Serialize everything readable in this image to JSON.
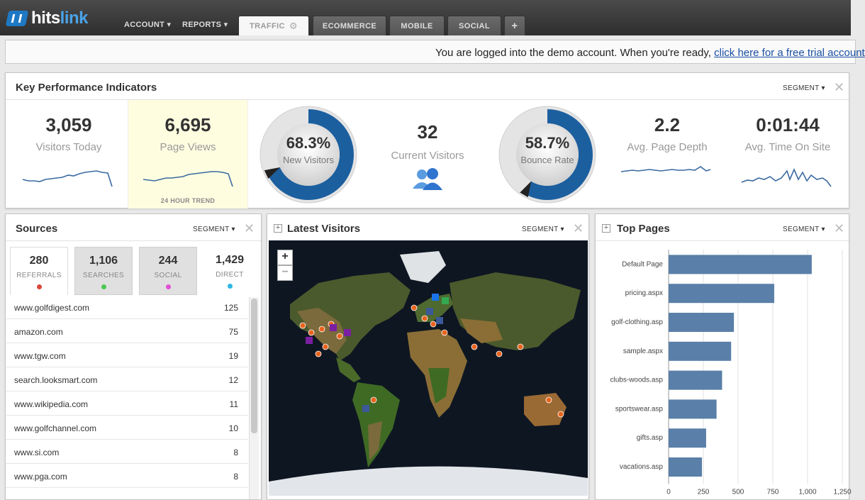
{
  "app": {
    "logo_a": "hits",
    "logo_b": "link"
  },
  "nav": {
    "menus": [
      {
        "label": "ACCOUNT ▾"
      },
      {
        "label": "REPORTS ▾"
      }
    ],
    "tabs": [
      {
        "label": "TRAFFIC"
      },
      {
        "label": "ECOMMERCE"
      },
      {
        "label": "MOBILE"
      },
      {
        "label": "SOCIAL"
      },
      {
        "label": "+"
      }
    ]
  },
  "banner": {
    "text": "You are logged into the demo account.  When you're ready, ",
    "link": "click here for a free trial account"
  },
  "kpi": {
    "title": "Key Performance Indicators",
    "segment_label": "SEGMENT",
    "visitors_today": {
      "value": "3,059",
      "label": "Visitors Today"
    },
    "page_views": {
      "value": "6,695",
      "label": "Page Views"
    },
    "trend_label": "24 HOUR TREND",
    "new_visitors": {
      "value": "68.3%",
      "label": "New Visitors",
      "fraction": 0.683
    },
    "current_visitors": {
      "value": "32",
      "label": "Current Visitors"
    },
    "bounce_rate": {
      "value": "58.7%",
      "label": "Bounce Rate",
      "fraction": 0.587
    },
    "avg_page_depth": {
      "value": "2.2",
      "label": "Avg. Page Depth"
    },
    "avg_time": {
      "value": "0:01:44",
      "label": "Avg. Time On Site"
    },
    "colors": {
      "gauge": "#1c5f9f",
      "spark": "#3a6aa0",
      "highlight": "#fffde0"
    }
  },
  "sources": {
    "title": "Sources",
    "segment_label": "SEGMENT",
    "tabs": [
      {
        "count": "280",
        "label": "REFERRALS",
        "color": "#d9473a"
      },
      {
        "count": "1,106",
        "label": "SEARCHES",
        "color": "#4cc850"
      },
      {
        "count": "244",
        "label": "SOCIAL",
        "color": "#e24fd6"
      },
      {
        "count": "1,429",
        "label": "DIRECT",
        "color": "#2db6e6"
      }
    ],
    "rows": [
      {
        "name": "www.golfdigest.com",
        "count": "125"
      },
      {
        "name": "amazon.com",
        "count": "75"
      },
      {
        "name": "www.tgw.com",
        "count": "19"
      },
      {
        "name": "search.looksmart.com",
        "count": "12"
      },
      {
        "name": "www.wikipedia.com",
        "count": "11"
      },
      {
        "name": "www.golfchannel.com",
        "count": "10"
      },
      {
        "name": "www.si.com",
        "count": "8"
      },
      {
        "name": "www.pga.com",
        "count": "8"
      }
    ]
  },
  "latest": {
    "title": "Latest Visitors",
    "segment_label": "SEGMENT",
    "zoom_in": "+",
    "zoom_out": "−"
  },
  "top_pages": {
    "title": "Top Pages",
    "segment_label": "SEGMENT"
  },
  "chart_data": {
    "type": "bar",
    "orientation": "horizontal",
    "categories": [
      "Default Page",
      "pricing.aspx",
      "golf-clothing.asp",
      "sample.aspx",
      "clubs-woods.asp",
      "sportswear.asp",
      "gifts.asp",
      "vacations.asp"
    ],
    "values": [
      1030,
      760,
      470,
      450,
      385,
      345,
      270,
      240
    ],
    "xlim": [
      0,
      1250
    ],
    "xticks": [
      "0",
      "250",
      "500",
      "750",
      "1,000",
      "1,250"
    ],
    "grid": true,
    "bar_color": "#5a7fa8"
  }
}
